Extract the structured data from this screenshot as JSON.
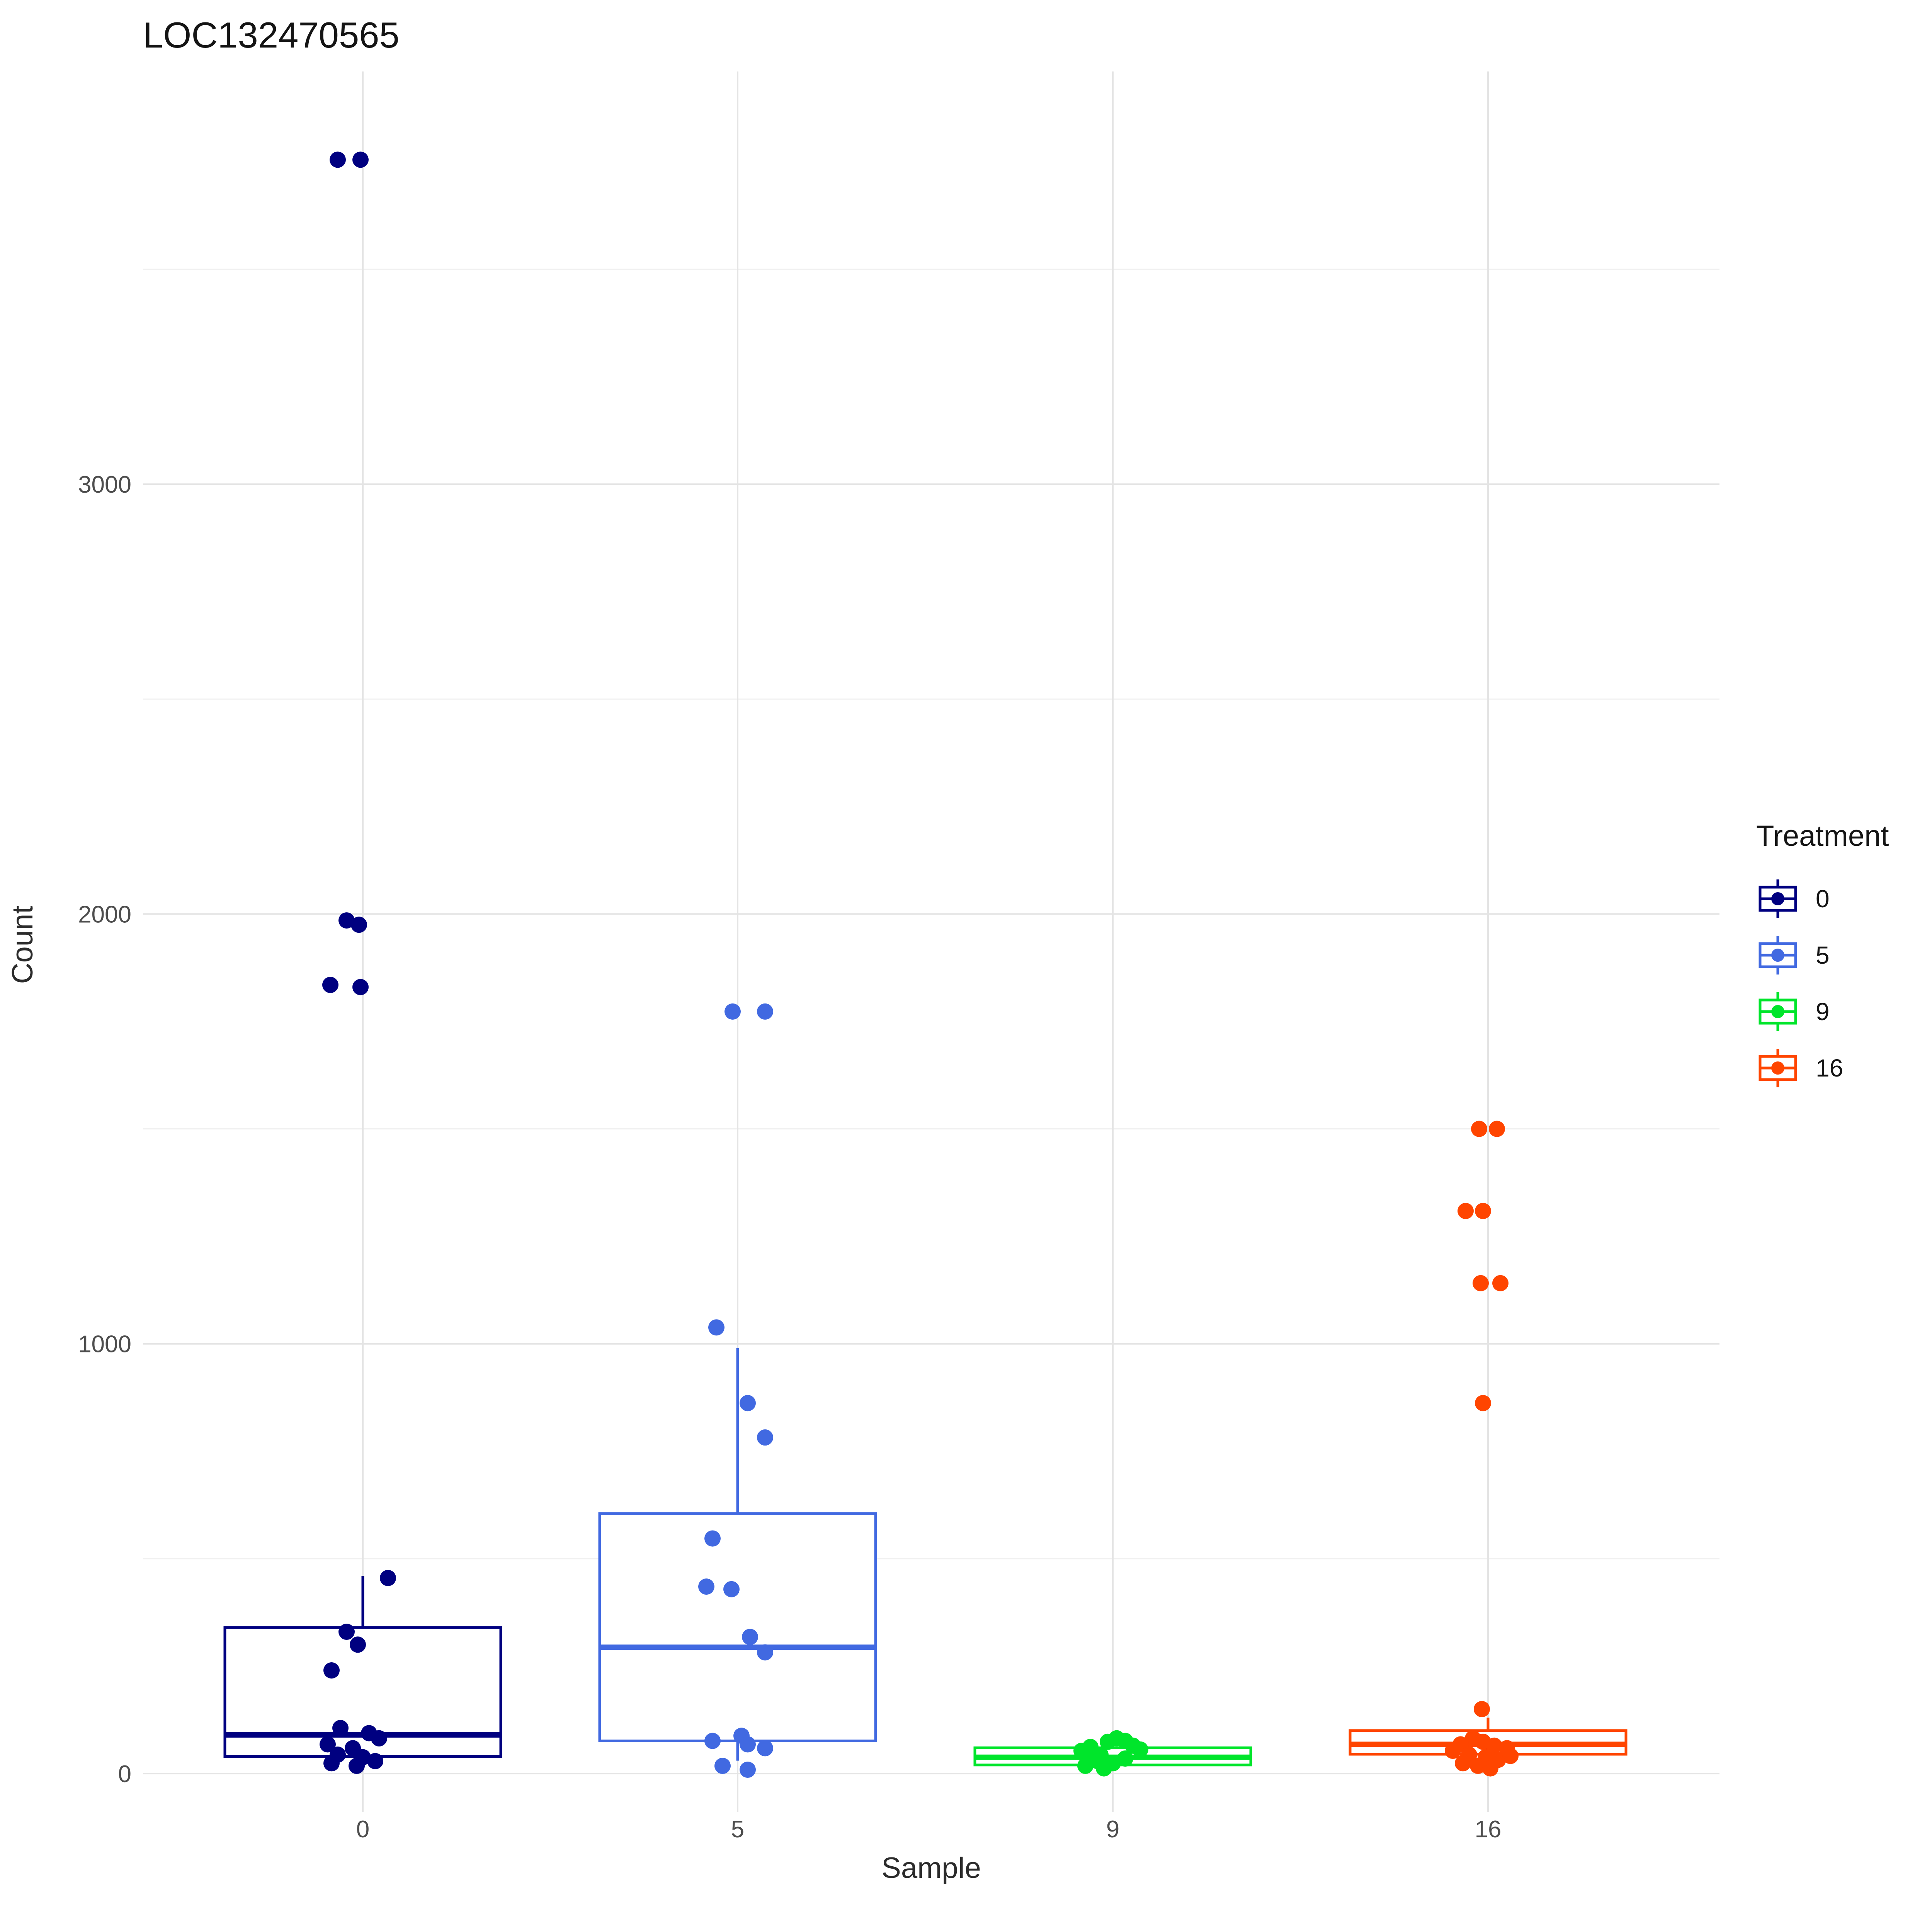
{
  "title": "LOC132470565",
  "axes": {
    "x_label": "Sample",
    "y_label": "Count"
  },
  "legend": {
    "title": "Treatment",
    "entries": [
      {
        "label": "0",
        "color": "#000080"
      },
      {
        "label": "5",
        "color": "#4169E1"
      },
      {
        "label": "9",
        "color": "#00E52B"
      },
      {
        "label": "16",
        "color": "#FF4500"
      }
    ]
  },
  "chart_data": {
    "type": "boxplot",
    "title": "LOC132470565",
    "xlabel": "Sample",
    "ylabel": "Count",
    "legend_title": "Treatment",
    "legend_position": "right",
    "grid": true,
    "categories": [
      "0",
      "5",
      "9",
      "16"
    ],
    "y_ticks": [
      0,
      1000,
      2000,
      3000
    ],
    "y_minor_gridlines": [
      500,
      1500,
      2500,
      3500
    ],
    "ylim": [
      -90,
      3960
    ],
    "groups": [
      {
        "category": "0",
        "treatment": "0",
        "color": "#000080",
        "box": {
          "q1": 40,
          "median": 90,
          "q3": 340,
          "whisker_low": 20,
          "whisker_high": 460
        },
        "values": [
          3755,
          3755,
          1985,
          1975,
          1835,
          1830,
          455,
          330,
          300,
          240,
          106,
          94,
          82,
          68,
          59,
          44,
          38,
          29,
          24,
          18
        ],
        "jitter_dx": [
          -65,
          -6,
          -42,
          -10,
          -84,
          -6,
          65,
          -42,
          -13,
          -81,
          -58,
          16,
          42,
          -91,
          -26,
          -65,
          0,
          32,
          -81,
          -16
        ]
      },
      {
        "category": "5",
        "treatment": "5",
        "color": "#4169E1",
        "box": {
          "q1": 76,
          "median": 294,
          "q3": 605,
          "whisker_low": 30,
          "whisker_high": 990
        },
        "values": [
          1773,
          1773,
          1038,
          862,
          782,
          547,
          435,
          429,
          318,
          282,
          88,
          76,
          68,
          59,
          18,
          9
        ],
        "jitter_dx": [
          -13,
          71,
          -55,
          26,
          71,
          -65,
          -81,
          -16,
          32,
          71,
          10,
          -65,
          26,
          71,
          -39,
          26
        ]
      },
      {
        "category": "9",
        "treatment": "9",
        "color": "#00E52B",
        "box": {
          "q1": 20,
          "median": 38,
          "q3": 60,
          "whisker_low": 8,
          "whisker_high": 82
        },
        "values": [
          53,
          62,
          44,
          74,
          82,
          76,
          65,
          56,
          29,
          24,
          35,
          18,
          12
        ],
        "jitter_dx": [
          -81,
          -58,
          -32,
          -13,
          10,
          32,
          52,
          71,
          -39,
          0,
          32,
          -71,
          -23
        ]
      },
      {
        "category": "16",
        "treatment": "16",
        "color": "#FF4500",
        "box": {
          "q1": 45,
          "median": 68,
          "q3": 100,
          "whisker_low": 22,
          "whisker_high": 130
        },
        "values": [
          1500,
          1500,
          1309,
          1309,
          1141,
          1141,
          862,
          150,
          82,
          68,
          74,
          65,
          59,
          53,
          44,
          38,
          32,
          41,
          24,
          18,
          12
        ],
        "jitter_dx": [
          -23,
          23,
          -58,
          -13,
          -19,
          32,
          -13,
          -16,
          -39,
          -71,
          -13,
          16,
          49,
          -91,
          -49,
          -6,
          26,
          58,
          -65,
          -26,
          6
        ]
      }
    ]
  }
}
